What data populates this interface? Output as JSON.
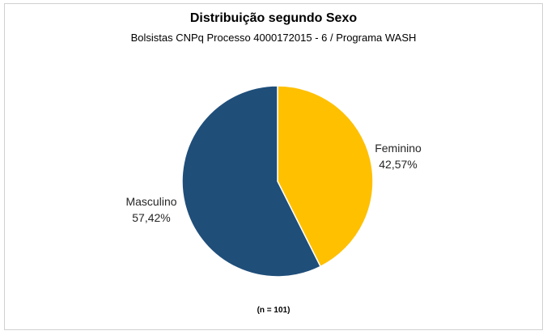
{
  "chart_data": {
    "type": "pie",
    "title": "Distribuição segundo Sexo",
    "subtitle": "Bolsistas CNPq Processo 4000172015 - 6 / Programa WASH",
    "note": "(n = 101)",
    "categories": [
      "Feminino",
      "Masculino"
    ],
    "values": [
      42.57,
      57.42
    ],
    "value_labels": [
      "42,57%",
      "57,42%"
    ],
    "colors": [
      "#FFC000",
      "#1F4E79"
    ],
    "start_angle": "12 o'clock",
    "direction": "clockwise",
    "legend": "none"
  }
}
